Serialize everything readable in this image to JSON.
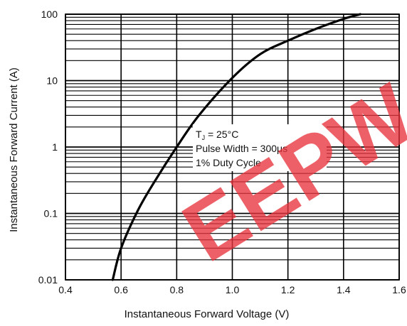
{
  "chart_data": {
    "type": "line",
    "title": "",
    "xlabel": "Instantaneous Forward Voltage (V)",
    "ylabel": "Instantaneous Forward Current (A)",
    "xlim": [
      0.4,
      1.6
    ],
    "ylim": [
      0.01,
      100
    ],
    "yscale": "log",
    "grid": true,
    "x_ticks": [
      0.4,
      0.6,
      0.8,
      1.0,
      1.2,
      1.4,
      1.6
    ],
    "x_tick_labels": [
      "0.4",
      "0.6",
      "0.8",
      "1.0",
      "1.2",
      "1.4",
      "1.6"
    ],
    "y_ticks": [
      0.01,
      0.1,
      1,
      10,
      100
    ],
    "y_tick_labels": [
      "0.01",
      "0.1",
      "1",
      "10",
      "100"
    ],
    "series": [
      {
        "name": "",
        "color": "#000000",
        "points": [
          {
            "x": 0.57,
            "y": 0.01
          },
          {
            "x": 0.6,
            "y": 0.03
          },
          {
            "x": 0.66,
            "y": 0.11
          },
          {
            "x": 0.72,
            "y": 0.3
          },
          {
            "x": 0.8,
            "y": 1.0
          },
          {
            "x": 0.88,
            "y": 3.0
          },
          {
            "x": 1.0,
            "y": 11
          },
          {
            "x": 1.1,
            "y": 25
          },
          {
            "x": 1.2,
            "y": 40
          },
          {
            "x": 1.3,
            "y": 60
          },
          {
            "x": 1.4,
            "y": 85
          },
          {
            "x": 1.46,
            "y": 100
          }
        ]
      }
    ],
    "annotations": [
      {
        "main": "T",
        "sub": "J",
        "rest": " = 25°C"
      },
      {
        "main": "Pulse Width = 300μs",
        "sub": "",
        "rest": ""
      },
      {
        "main": "1% Duty Cycle",
        "sub": "",
        "rest": ""
      }
    ]
  },
  "watermark": {
    "text": "EEPW",
    "color": "#e8333c"
  }
}
